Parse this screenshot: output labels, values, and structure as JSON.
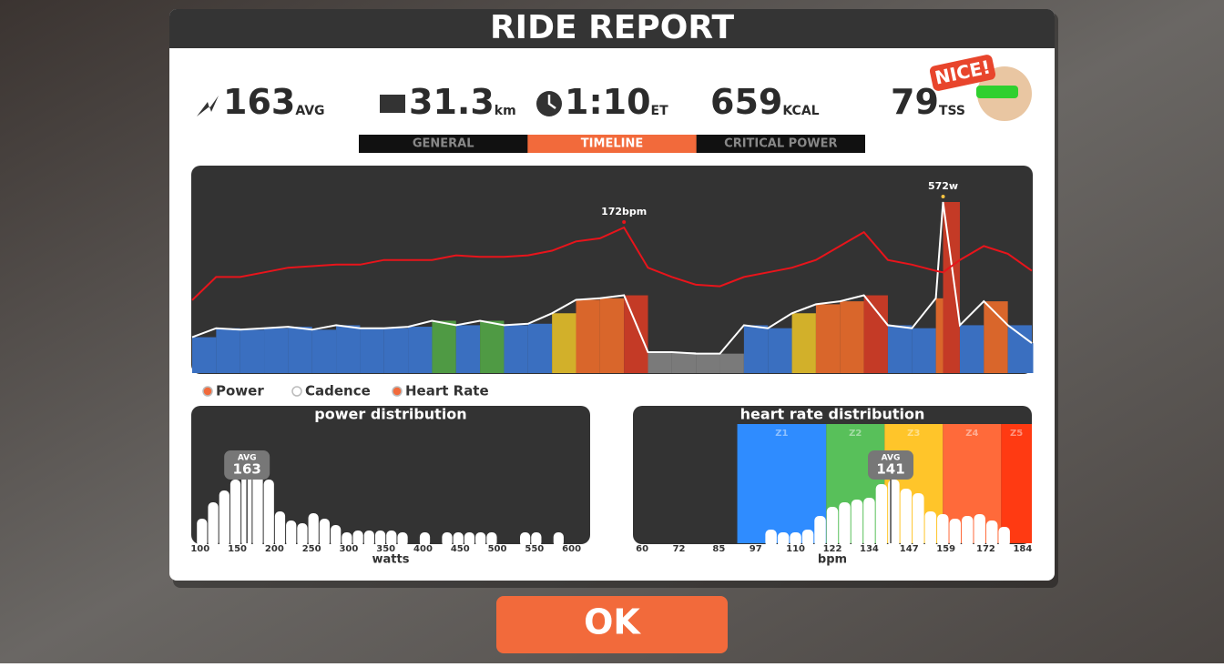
{
  "header": {
    "title": "RIDE REPORT",
    "badge": "NICE!"
  },
  "stats": [
    {
      "value": "163",
      "unit": "AVG"
    },
    {
      "value": "31.3",
      "unit": "km"
    },
    {
      "value": "1:10",
      "unit": "ET"
    },
    {
      "value": "659",
      "unit": "KCAL"
    },
    {
      "value": "79",
      "unit": "TSS"
    }
  ],
  "tabs": [
    {
      "label": "GENERAL",
      "active": false
    },
    {
      "label": "TIMELINE",
      "active": true
    },
    {
      "label": "CRITICAL POWER",
      "active": false
    }
  ],
  "timeline": {
    "type": "bar-line",
    "x": [
      0,
      2,
      4,
      6,
      8,
      10,
      12,
      14,
      16,
      18,
      20,
      22,
      24,
      26,
      28,
      30,
      32,
      34,
      36,
      38,
      40,
      42,
      44,
      46,
      48,
      50,
      52,
      54,
      56,
      58,
      60,
      62,
      62.6,
      64,
      66,
      68,
      70
    ],
    "series": [
      {
        "name": "Power",
        "color": "#ffffff",
        "values": [
          120,
          150,
          145,
          150,
          155,
          145,
          160,
          150,
          150,
          155,
          175,
          160,
          175,
          160,
          165,
          200,
          245,
          250,
          260,
          70,
          70,
          65,
          65,
          160,
          150,
          200,
          230,
          240,
          260,
          160,
          150,
          250,
          572,
          160,
          240,
          160,
          100
        ]
      },
      {
        "name": "Heart Rate",
        "color": "#e8141b",
        "values": [
          125,
          140,
          140,
          143,
          146,
          147,
          148,
          148,
          151,
          151,
          151,
          154,
          153,
          153,
          154,
          157,
          163,
          165,
          172,
          146,
          140,
          135,
          134,
          140,
          143,
          146,
          151,
          160,
          169,
          151,
          148,
          144,
          143,
          151,
          160,
          155,
          144
        ]
      }
    ],
    "power_zones": [
      {
        "to": 100,
        "color": "#7a7a7a"
      },
      {
        "to": 170,
        "color": "#3a6fc0"
      },
      {
        "to": 200,
        "color": "#4f9a44"
      },
      {
        "to": 230,
        "color": "#d2b02a"
      },
      {
        "to": 260,
        "color": "#d9662b"
      },
      {
        "to": 10000,
        "color": "#c43a26"
      }
    ],
    "annotations": [
      {
        "text": "172bpm",
        "x": 36,
        "value": 172,
        "series": 1
      },
      {
        "text": "572w",
        "x": 62.6,
        "value": 572,
        "series": 0
      }
    ]
  },
  "legend": [
    {
      "label": "Power",
      "enabled": true
    },
    {
      "label": "Cadence",
      "enabled": false
    },
    {
      "label": "Heart Rate",
      "enabled": true
    }
  ],
  "power_distribution": {
    "type": "histogram",
    "title": "power distribution",
    "xlabel": "watts",
    "bins": [
      95,
      110,
      125,
      140,
      155,
      170,
      185,
      200,
      215,
      230,
      245,
      260,
      275,
      290,
      305,
      320,
      335,
      350,
      365,
      380,
      395,
      410,
      425,
      440,
      455,
      470,
      485,
      500,
      515,
      530,
      545,
      560,
      575,
      590,
      605
    ],
    "values": [
      27,
      45,
      58,
      70,
      75,
      75,
      70,
      35,
      25,
      22,
      33,
      27,
      20,
      12,
      14,
      14,
      14,
      14,
      12,
      0,
      12,
      0,
      12,
      12,
      12,
      12,
      12,
      0,
      0,
      12,
      12,
      0,
      12,
      0
    ],
    "xlim": [
      88,
      625
    ],
    "xticks": [
      100,
      150,
      200,
      250,
      300,
      350,
      400,
      450,
      500,
      550,
      600
    ],
    "avg": {
      "label": "AVG",
      "value": 163
    }
  },
  "hr_distribution": {
    "type": "histogram",
    "title": "heart rate distribution",
    "xlabel": "bpm",
    "bins": [
      100,
      104,
      108,
      112,
      116,
      120,
      124,
      128,
      132,
      136,
      140,
      144,
      148,
      152,
      156,
      160,
      164,
      168,
      172,
      176,
      180
    ],
    "values": [
      15,
      12,
      12,
      15,
      30,
      40,
      45,
      48,
      50,
      65,
      70,
      60,
      55,
      35,
      32,
      27,
      30,
      32,
      25,
      18
    ],
    "xlim": [
      57,
      187
    ],
    "xticks": [
      60,
      72,
      85,
      97,
      110,
      122,
      134,
      147,
      159,
      172,
      184
    ],
    "zones": [
      {
        "label": "Z1",
        "from": 91,
        "to": 120,
        "color": "#2f8cff"
      },
      {
        "label": "Z2",
        "from": 120,
        "to": 139,
        "color": "#58c05a"
      },
      {
        "label": "Z3",
        "from": 139,
        "to": 158,
        "color": "#ffc52a"
      },
      {
        "label": "Z4",
        "from": 158,
        "to": 177,
        "color": "#ff6a3a"
      },
      {
        "label": "Z5",
        "from": 177,
        "to": 187,
        "color": "#ff3a12"
      }
    ],
    "avg": {
      "label": "AVG",
      "value": 141
    }
  },
  "button": {
    "label": "OK"
  }
}
